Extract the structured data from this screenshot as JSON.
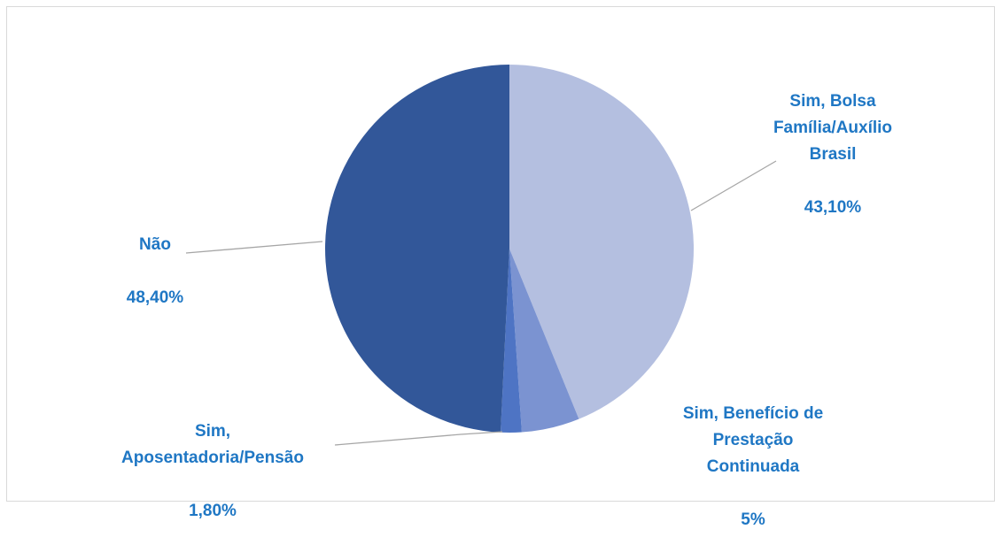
{
  "chart_data": {
    "type": "pie",
    "title": "",
    "slices": [
      {
        "label": "Sim, Bolsa\nFamília/Auxílio\nBrasil",
        "value_label": "43,10%",
        "value": 43.1,
        "color": "#b4bfe0"
      },
      {
        "label": "Sim, Benefício de\nPrestação\nContinuada",
        "value_label": "5%",
        "value": 5.0,
        "color": "#7b93d1"
      },
      {
        "label": "Sim,\nAposentadoria/Pensão",
        "value_label": "1,80%",
        "value": 1.8,
        "color": "#4e74c4"
      },
      {
        "label": "Não",
        "value_label": "48,40%",
        "value": 48.4,
        "color": "#325799"
      }
    ],
    "label_color": "#1f77c4",
    "leader_color": "#a6a6a6"
  }
}
